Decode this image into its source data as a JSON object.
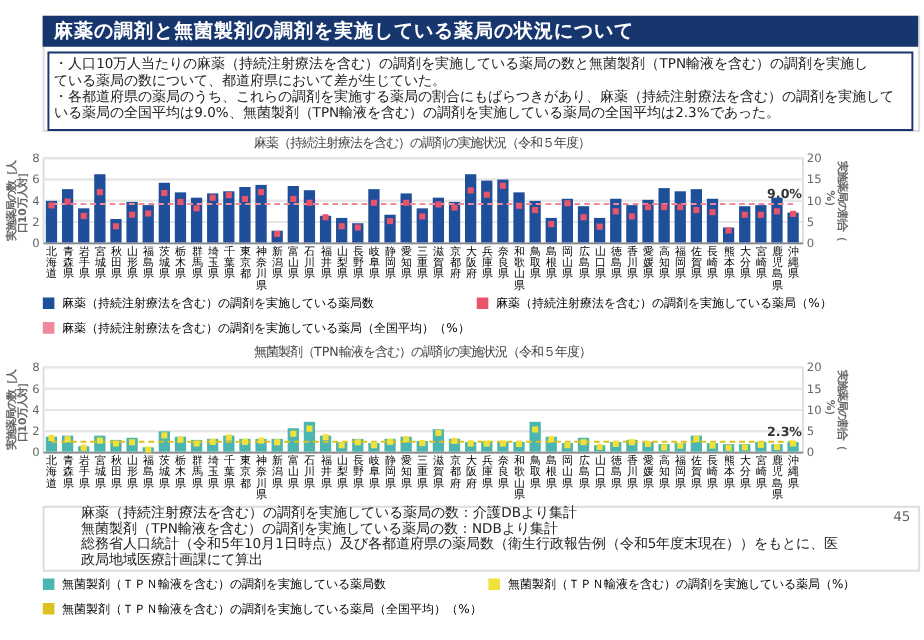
{
  "chart_data": [
    {
      "type": "other",
      "title": "麻薬の調剤と無菌製剤の調剤を実施している薬局の状況について",
      "annotations": [
        "・人口10万人当たりの麻薬（持続注射療法を含む）の調剤を実施している薬局の数と無菌製剤（TPN輸液を含む）の調剤を実施している薬局の数について、都道府県において差が生じていた。",
        "・各都道府県の薬局のうち、これらの調剤を実施する薬局の割合にもばらつきがあり、麻薬（持続注射療法を含む）の調剤を実施している薬局の全国平均は9.0%、無菌製剤（TPN輸液を含む）の調剤を実施している薬局の全国平均は2.3%であった。"
      ]
    },
    {
      "type": "bar",
      "title": "麻薬（持続注射療法を含む）の調剤の実施状況（令和５年度）",
      "ylabel": "実施薬局の数［人口10万人対］",
      "y2label": "実施薬局の割合（%）",
      "categories": [
        "北海道",
        "青森県",
        "岩手県",
        "宮城県",
        "秋田県",
        "山形県",
        "福島県",
        "茨城県",
        "栃木県",
        "群馬県",
        "埼玉県",
        "千葉県",
        "東京都",
        "神奈川県",
        "新潟県",
        "富山県",
        "石川県",
        "福井県",
        "山梨県",
        "長野県",
        "岐阜県",
        "静岡県",
        "愛知県",
        "三重県",
        "滋賀県",
        "京都府",
        "大阪府",
        "兵庫県",
        "奈良県",
        "和歌山県",
        "鳥取県",
        "島根県",
        "岡山県",
        "広島県",
        "山口県",
        "徳島県",
        "香川県",
        "愛媛県",
        "高知県",
        "福岡県",
        "佐賀県",
        "長崎県",
        "熊本県",
        "大分県",
        "宮崎県",
        "鹿児島県",
        "沖縄県"
      ],
      "ylim": [
        0,
        8
      ],
      "yticks": [
        0,
        2,
        4,
        6,
        8
      ],
      "y2lim": [
        0,
        20
      ],
      "y2ticks": [
        0,
        5,
        10,
        15,
        20
      ],
      "grid": true,
      "legend": "bottom",
      "series": [
        {
          "name": "麻薬（持続注射療法を含む）の調剤を実施している薬局数",
          "type": "bar",
          "color": "#1f4e9a",
          "values": [
            3.9,
            5.0,
            3.2,
            6.4,
            2.2,
            3.8,
            3.5,
            5.6,
            4.7,
            4.2,
            4.6,
            4.8,
            5.2,
            5.4,
            1.1,
            5.3,
            4.9,
            2.5,
            2.3,
            1.8,
            5.0,
            2.6,
            4.6,
            3.2,
            4.2,
            3.8,
            6.4,
            5.8,
            5.9,
            4.7,
            3.9,
            2.3,
            4.1,
            3.4,
            2.3,
            4.1,
            3.5,
            4.0,
            5.1,
            4.8,
            5.0,
            4.1,
            1.4,
            3.4,
            3.5,
            4.2,
            2.8
          ]
        },
        {
          "name": "麻薬（持続注射療法を含む）の調剤を実施している薬局（%）",
          "type": "scatter",
          "axis": "y2",
          "marker": "square",
          "color": "#e9546b",
          "values": [
            8.7,
            9.6,
            6.2,
            11.8,
            3.8,
            6.5,
            6.8,
            11.6,
            9.5,
            8.0,
            10.5,
            11.1,
            10.2,
            11.8,
            2.0,
            10.2,
            9.3,
            5.9,
            3.8,
            3.5,
            9.3,
            5.0,
            9.3,
            6.1,
            8.9,
            8.2,
            12.2,
            11.2,
            13.3,
            8.6,
            7.6,
            4.3,
            9.2,
            5.9,
            3.7,
            7.3,
            6.1,
            8.3,
            8.3,
            8.3,
            7.6,
            7.1,
            2.8,
            6.5,
            6.5,
            7.3,
            6.7
          ]
        },
        {
          "name": "麻薬（持続注射療法を含む）の調剤を実施している薬局（全国平均）（%）",
          "type": "line",
          "axis": "y2",
          "color": "#f0899a",
          "line_style": "dashed",
          "values": [
            9.0,
            9.0,
            9.0,
            9.0,
            9.0,
            9.0,
            9.0,
            9.0,
            9.0,
            9.0,
            9.0,
            9.0,
            9.0,
            9.0,
            9.0,
            9.0,
            9.0,
            9.0,
            9.0,
            9.0,
            9.0,
            9.0,
            9.0,
            9.0,
            9.0,
            9.0,
            9.0,
            9.0,
            9.0,
            9.0,
            9.0,
            9.0,
            9.0,
            9.0,
            9.0,
            9.0,
            9.0,
            9.0,
            9.0,
            9.0,
            9.0,
            9.0,
            9.0,
            9.0,
            9.0,
            9.0,
            9.0
          ]
        }
      ],
      "annotations": [
        "9.0%"
      ]
    },
    {
      "type": "bar",
      "title": "無菌製剤（TPN輸液を含む）の調剤の実施状況（令和５年度）",
      "ylabel": "実施薬局の数［人口10万人対］",
      "y2label": "実施薬局の割合（%）",
      "categories": [
        "北海道",
        "青森県",
        "岩手県",
        "宮城県",
        "秋田県",
        "山形県",
        "福島県",
        "茨城県",
        "栃木県",
        "群馬県",
        "埼玉県",
        "千葉県",
        "東京都",
        "神奈川県",
        "新潟県",
        "富山県",
        "石川県",
        "福井県",
        "山梨県",
        "長野県",
        "岐阜県",
        "静岡県",
        "愛知県",
        "三重県",
        "滋賀県",
        "京都府",
        "大阪府",
        "兵庫県",
        "奈良県",
        "和歌山県",
        "鳥取県",
        "島根県",
        "岡山県",
        "広島県",
        "山口県",
        "徳島県",
        "香川県",
        "愛媛県",
        "高知県",
        "福岡県",
        "佐賀県",
        "長崎県",
        "熊本県",
        "大分県",
        "宮崎県",
        "鹿児島県",
        "沖縄県"
      ],
      "ylim": [
        0,
        8
      ],
      "yticks": [
        0,
        2,
        4,
        6,
        8
      ],
      "y2lim": [
        0,
        20
      ],
      "y2ticks": [
        0,
        5,
        10,
        15,
        20
      ],
      "grid": true,
      "legend": "bottom",
      "series": [
        {
          "name": "無菌製剤（ＴＰＮ輸液を含む）の調剤を実施している薬局数",
          "type": "bar",
          "color": "#4ab5b1",
          "values": [
            1.4,
            1.5,
            0.5,
            1.5,
            1.1,
            1.3,
            0.4,
            1.9,
            1.4,
            1.1,
            1.2,
            1.5,
            1.2,
            1.2,
            1.2,
            2.2,
            2.8,
            1.5,
            0.9,
            1.2,
            0.8,
            1.2,
            1.4,
            1.0,
            2.1,
            1.2,
            0.9,
            1.0,
            0.9,
            0.9,
            2.8,
            1.4,
            0.8,
            1.3,
            0.6,
            0.9,
            1.1,
            0.9,
            0.7,
            0.8,
            1.5,
            0.8,
            0.7,
            0.7,
            0.9,
            0.7,
            0.9
          ]
        },
        {
          "name": "無菌製剤（ＴＰＮ輸液を含む）の調剤を実施している薬局（%）",
          "type": "scatter",
          "axis": "y2",
          "marker": "square",
          "color": "#f2e13a",
          "values": [
            3.2,
            2.9,
            0.9,
            2.6,
            1.9,
            2.2,
            0.5,
            3.8,
            2.8,
            1.9,
            2.3,
            3.3,
            2.3,
            2.6,
            2.2,
            4.2,
            5.4,
            3.4,
            1.5,
            2.2,
            1.5,
            2.3,
            2.9,
            2.0,
            4.4,
            2.5,
            1.9,
            1.9,
            1.9,
            1.8,
            5.2,
            2.9,
            1.5,
            2.2,
            1.1,
            1.8,
            2.2,
            1.8,
            1.0,
            1.4,
            3.0,
            1.4,
            0.9,
            1.0,
            1.6,
            1.1,
            1.9
          ]
        },
        {
          "name": "無菌製剤（ＴＰＮ輸液を含む）の調剤を実施している薬局（全国平均）（%）",
          "type": "line",
          "axis": "y2",
          "color": "#dcc21e",
          "line_style": "dashed",
          "values": [
            2.3,
            2.3,
            2.3,
            2.3,
            2.3,
            2.3,
            2.3,
            2.3,
            2.3,
            2.3,
            2.3,
            2.3,
            2.3,
            2.3,
            2.3,
            2.3,
            2.3,
            2.3,
            2.3,
            2.3,
            2.3,
            2.3,
            2.3,
            2.3,
            2.3,
            2.3,
            2.3,
            2.3,
            2.3,
            2.3,
            2.3,
            2.3,
            2.3,
            2.3,
            2.3,
            2.3,
            2.3,
            2.3,
            2.3,
            2.3,
            2.3,
            2.3,
            2.3,
            2.3,
            2.3,
            2.3,
            2.3
          ]
        }
      ],
      "annotations": [
        "2.3%",
        "麻薬（持続注射療法を含む）の調剤を実施している薬局の数：介護DBより集計",
        "無菌製剤（TPN輸液を含む）の調剤を実施している薬局の数：NDBより集計",
        "総務省人口統計（令和5年10月1日時点）及び各都道府県の薬局数（衛生行政報告例（令和5年度末現在））をもとに、医政局地域医療計画課にて算出",
        "45"
      ]
    }
  ]
}
